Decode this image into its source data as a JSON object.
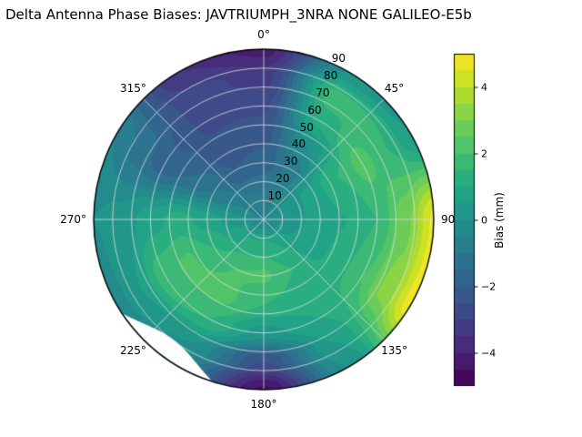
{
  "title": "Delta Antenna Phase Biases: JAVTRIUMPH_3NRA NONE GALILEO-E5b",
  "chart_data": {
    "type": "heatmap",
    "projection": "polar",
    "title": "Delta Antenna Phase Biases: JAVTRIUMPH_3NRA NONE GALILEO-E5b",
    "units": "mm",
    "vmin": -5,
    "vmax": 5,
    "level_step": 0.5,
    "colormap": "viridis",
    "colormap_stops": [
      {
        "pos": 0.0,
        "color": "#440154"
      },
      {
        "pos": 0.1,
        "color": "#482475"
      },
      {
        "pos": 0.2,
        "color": "#414487"
      },
      {
        "pos": 0.3,
        "color": "#355f8d"
      },
      {
        "pos": 0.4,
        "color": "#2a788e"
      },
      {
        "pos": 0.5,
        "color": "#21918c"
      },
      {
        "pos": 0.6,
        "color": "#22a884"
      },
      {
        "pos": 0.7,
        "color": "#44bf70"
      },
      {
        "pos": 0.8,
        "color": "#7ad151"
      },
      {
        "pos": 0.9,
        "color": "#bddf26"
      },
      {
        "pos": 1.0,
        "color": "#fde725"
      }
    ],
    "angular_ticks": [
      {
        "angle_deg": 0,
        "label": "0°"
      },
      {
        "angle_deg": 45,
        "label": "45°"
      },
      {
        "angle_deg": 90,
        "label": "90"
      },
      {
        "angle_deg": 135,
        "label": "135°"
      },
      {
        "angle_deg": 180,
        "label": "180°"
      },
      {
        "angle_deg": 225,
        "label": "225°"
      },
      {
        "angle_deg": 270,
        "label": "270°"
      },
      {
        "angle_deg": 315,
        "label": "315°"
      }
    ],
    "radial_ticks": [
      {
        "r": 10,
        "label": "10"
      },
      {
        "r": 20,
        "label": "20"
      },
      {
        "r": 30,
        "label": "30"
      },
      {
        "r": 40,
        "label": "40"
      },
      {
        "r": 50,
        "label": "50"
      },
      {
        "r": 60,
        "label": "60"
      },
      {
        "r": 70,
        "label": "70"
      },
      {
        "r": 80,
        "label": "80"
      },
      {
        "r": 90,
        "label": "90"
      }
    ],
    "radial_label_azimuth_deg": 25,
    "radial_range": [
      0,
      90
    ],
    "grid": {
      "radial_circle_step": 10,
      "spoke_step_deg": 45,
      "color": "#dedede",
      "on": true
    },
    "azimuth_deg": [
      0,
      30,
      60,
      90,
      120,
      150,
      180,
      210,
      240,
      270,
      300,
      330
    ],
    "zenith_deg": [
      0,
      15,
      30,
      45,
      60,
      75,
      90
    ],
    "bias_grid_mm": [
      [
        -0.5,
        -0.5,
        -0.5,
        -0.5,
        -0.5,
        -0.5,
        -0.5,
        -0.5,
        -0.5,
        -0.5,
        -0.5,
        -0.5
      ],
      [
        -1.0,
        -0.5,
        0.2,
        0.3,
        0.5,
        1.0,
        1.3,
        1.2,
        0.8,
        0.2,
        -0.5,
        -1.0
      ],
      [
        -1.8,
        -0.8,
        0.8,
        0.8,
        0.8,
        1.5,
        2.1,
        2.0,
        1.5,
        0.8,
        -1.0,
        -2.0
      ],
      [
        -2.2,
        0.0,
        1.5,
        1.0,
        1.2,
        1.2,
        1.5,
        2.2,
        2.1,
        1.2,
        -1.5,
        -2.4
      ],
      [
        -2.6,
        1.2,
        2.2,
        1.5,
        2.0,
        1.0,
        0.3,
        1.5,
        1.8,
        0.8,
        -1.8,
        -2.6
      ],
      [
        -3.2,
        1.8,
        1.5,
        2.8,
        3.2,
        0.5,
        -2.5,
        0.0,
        0.5,
        0.2,
        -1.2,
        -2.8
      ],
      [
        -4.2,
        0.0,
        0.5,
        4.6,
        4.8,
        0.0,
        -4.6,
        -1.0,
        -0.3,
        0.0,
        -0.5,
        -3.5
      ]
    ],
    "masked_region": {
      "description": "white no-data notch at rim",
      "azimuth_start_deg": 198,
      "azimuth_end_deg": 236,
      "max_depth_zenith_deg": 10
    },
    "colorbar": {
      "label": "Bias (mm)",
      "ticks": [
        {
          "value": -4,
          "label": "−4"
        },
        {
          "value": -2,
          "label": "−2"
        },
        {
          "value": 0,
          "label": "0"
        },
        {
          "value": 2,
          "label": "2"
        },
        {
          "value": 4,
          "label": "4"
        }
      ]
    }
  }
}
